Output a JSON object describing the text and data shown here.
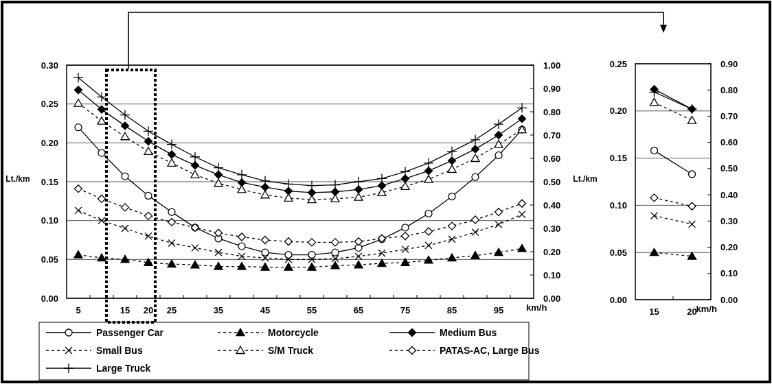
{
  "chart_data": [
    {
      "type": "line",
      "categories": [
        "5",
        null,
        "15",
        "20",
        "25",
        null,
        "35",
        null,
        "45",
        null,
        "55",
        null,
        "65",
        null,
        "75",
        null,
        "85",
        null,
        "95",
        null
      ],
      "xlabel": "km/h",
      "ylabel": "Lt./km",
      "ylim": [
        0,
        0.3
      ],
      "yticks": [
        {
          "value": 0,
          "label": "0.00"
        },
        {
          "value": 0.05,
          "label": "0.05"
        },
        {
          "value": 0.1,
          "label": "0.10"
        },
        {
          "value": 0.15,
          "label": "0.15"
        },
        {
          "value": 0.2,
          "label": "0.20"
        },
        {
          "value": 0.25,
          "label": "0.25"
        },
        {
          "value": 0.3,
          "label": "0.30"
        }
      ],
      "y2lim": [
        0,
        1
      ],
      "y2ticks": [
        {
          "value": 0,
          "label": "0.00"
        },
        {
          "value": 0.1,
          "label": "0.10"
        },
        {
          "value": 0.2,
          "label": "0.20"
        },
        {
          "value": 0.3,
          "label": "0.30"
        },
        {
          "value": 0.4,
          "label": "0.40"
        },
        {
          "value": 0.5,
          "label": "0.50"
        },
        {
          "value": 0.6,
          "label": "0.60"
        },
        {
          "value": 0.7,
          "label": "0.70"
        },
        {
          "value": 0.8,
          "label": "0.80"
        },
        {
          "value": 0.9,
          "label": "0.90"
        },
        {
          "value": 1,
          "label": "1.00"
        }
      ],
      "grid": "y",
      "legend": "bottom",
      "series": [
        {
          "name": "Passenger Car",
          "color": "#000000",
          "marker": "circle",
          "line_style": "solid",
          "values": [
            0.22,
            0.187,
            0.157,
            0.132,
            0.111,
            0.091,
            0.077,
            0.067,
            0.059,
            0.056,
            0.056,
            0.059,
            0.065,
            0.076,
            0.091,
            0.109,
            0.131,
            0.156,
            0.184,
            0.217
          ]
        },
        {
          "name": "Motorcycle",
          "color": "#000000",
          "marker": "triangle",
          "line_style": "dashed",
          "values": [
            0.056,
            0.052,
            0.05,
            0.046,
            0.044,
            0.043,
            0.041,
            0.041,
            0.04,
            0.04,
            0.04,
            0.042,
            0.043,
            0.045,
            0.046,
            0.049,
            0.052,
            0.055,
            0.059,
            0.064
          ]
        },
        {
          "name": "Medium Bus",
          "color": "#000000",
          "marker": "diamond",
          "line_style": "solid",
          "values": [
            0.268,
            0.243,
            0.222,
            0.202,
            0.185,
            0.171,
            0.159,
            0.149,
            0.143,
            0.138,
            0.136,
            0.137,
            0.14,
            0.145,
            0.154,
            0.164,
            0.177,
            0.192,
            0.21,
            0.231
          ]
        },
        {
          "name": "Small Bus",
          "color": "#000000",
          "marker": "cross",
          "line_style": "dashed",
          "values": [
            0.113,
            0.1,
            0.09,
            0.08,
            0.071,
            0.065,
            0.059,
            0.054,
            0.052,
            0.05,
            0.05,
            0.051,
            0.054,
            0.058,
            0.063,
            0.068,
            0.076,
            0.085,
            0.095,
            0.108
          ]
        },
        {
          "name": "S/M Truck",
          "color": "#000000",
          "marker": "triangle",
          "line_style": "dashed",
          "values": [
            0.251,
            0.228,
            0.208,
            0.189,
            0.174,
            0.159,
            0.148,
            0.14,
            0.133,
            0.129,
            0.127,
            0.128,
            0.13,
            0.136,
            0.144,
            0.153,
            0.166,
            0.18,
            0.198,
            0.217
          ]
        },
        {
          "name": "PATAS-AC, Large Bus",
          "color": "#000000",
          "marker": "diamond",
          "line_style": "dashed",
          "values": [
            0.141,
            0.128,
            0.117,
            0.106,
            0.098,
            0.091,
            0.084,
            0.079,
            0.075,
            0.073,
            0.072,
            0.072,
            0.073,
            0.077,
            0.08,
            0.086,
            0.093,
            0.101,
            0.111,
            0.122
          ]
        },
        {
          "name": "Large Truck",
          "color": "#000000",
          "marker": "cross",
          "line_style": "solid",
          "values": [
            0.284,
            0.259,
            0.236,
            0.215,
            0.198,
            0.182,
            0.168,
            0.159,
            0.151,
            0.147,
            0.145,
            0.146,
            0.15,
            0.154,
            0.163,
            0.174,
            0.189,
            0.204,
            0.224,
            0.245
          ]
        }
      ]
    },
    {
      "type": "line",
      "categories": [
        "15",
        "20"
      ],
      "xlabel": "km/h",
      "ylabel": "Lt./km",
      "ylim": [
        0,
        0.25
      ],
      "yticks": [
        {
          "value": 0,
          "label": "0.00"
        },
        {
          "value": 0.05,
          "label": "0.05"
        },
        {
          "value": 0.1,
          "label": "0.10"
        },
        {
          "value": 0.15,
          "label": "0.15"
        },
        {
          "value": 0.2,
          "label": "0.20"
        },
        {
          "value": 0.25,
          "label": "0.25"
        }
      ],
      "y2lim": [
        0,
        0.9
      ],
      "y2ticks": [
        {
          "value": 0,
          "label": "0.00"
        },
        {
          "value": 0.1,
          "label": "0.10"
        },
        {
          "value": 0.2,
          "label": "0.20"
        },
        {
          "value": 0.3,
          "label": "0.30"
        },
        {
          "value": 0.4,
          "label": "0.40"
        },
        {
          "value": 0.5,
          "label": "0.50"
        },
        {
          "value": 0.6,
          "label": "0.60"
        },
        {
          "value": 0.7,
          "label": "0.70"
        },
        {
          "value": 0.8,
          "label": "0.80"
        },
        {
          "value": 0.9,
          "label": "0.90"
        }
      ],
      "grid": "y",
      "series": [
        {
          "color": "#000000",
          "marker": "circle",
          "line_style": "solid",
          "values": [
            0.158,
            0.133
          ]
        },
        {
          "color": "#000000",
          "marker": "triangle",
          "line_style": "dashed",
          "values": [
            0.05,
            0.046
          ]
        },
        {
          "color": "#000000",
          "marker": "diamond",
          "line_style": "solid",
          "values": [
            0.223,
            0.202
          ]
        },
        {
          "color": "#000000",
          "marker": "cross",
          "line_style": "dashed",
          "values": [
            0.089,
            0.08
          ]
        },
        {
          "color": "#000000",
          "marker": "triangle",
          "line_style": "dashed",
          "values": [
            0.209,
            0.19
          ]
        },
        {
          "color": "#000000",
          "marker": "diamond",
          "line_style": "dashed",
          "values": [
            0.108,
            0.099
          ]
        },
        {
          "color": "#000000",
          "marker": "cross",
          "line_style": "solid",
          "values": [
            0.22,
            0.202
          ]
        }
      ]
    }
  ]
}
